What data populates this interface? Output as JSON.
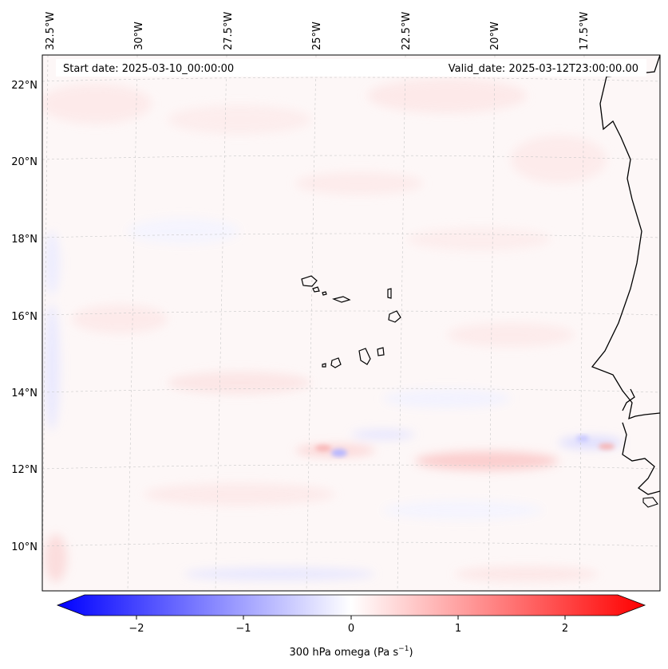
{
  "map": {
    "start_text": "Start date: 2025-03-10_00:00:00",
    "valid_text": "Valid_date: 2025-03-12T23:00:00.00",
    "lon_labels": [
      "32.5°W",
      "30°W",
      "27.5°W",
      "25°W",
      "22.5°W",
      "20°W",
      "17.5°W"
    ],
    "lat_labels": [
      "22°N",
      "20°N",
      "18°N",
      "16°N",
      "14°N",
      "12°N",
      "10°N"
    ]
  },
  "colorbar": {
    "ticks": [
      "−2",
      "−1",
      "0",
      "1",
      "2"
    ],
    "label": "300 hPa omega (Pa s",
    "label_sup": "−1",
    "label_end": ")",
    "range": [
      -2.6,
      2.6
    ],
    "colors": {
      "negative": "#0000ff",
      "zero": "#ffffff",
      "positive": "#ff0000"
    }
  }
}
